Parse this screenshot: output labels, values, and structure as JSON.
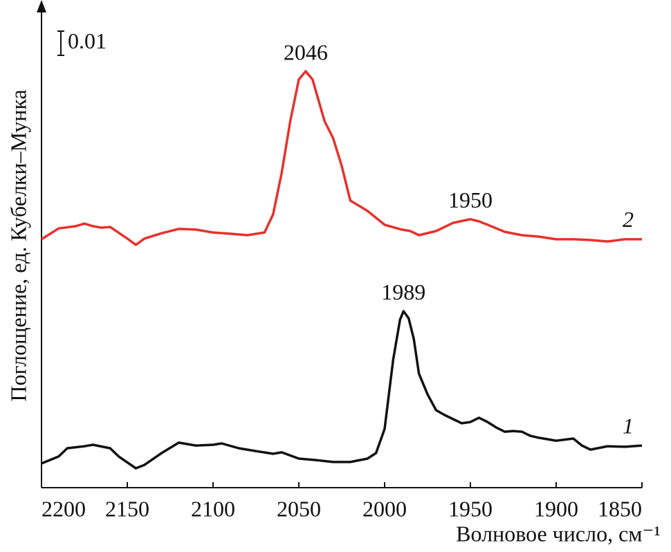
{
  "chart_data": {
    "type": "line",
    "xlabel": "Волновое число, см⁻¹",
    "ylabel": "Поглощение, ед. Кубелки–Мунка",
    "xlim": [
      2200,
      1850
    ],
    "xticks": [
      2200,
      2150,
      2100,
      2050,
      2000,
      1950,
      1900,
      1850
    ],
    "ylim": [
      0,
      0.2
    ],
    "scale_bar": 0.01,
    "series": [
      {
        "name": "1",
        "color": "#111111",
        "x": [
          2200,
          2190,
          2185,
          2175,
          2170,
          2160,
          2155,
          2145,
          2140,
          2130,
          2120,
          2110,
          2100,
          2095,
          2085,
          2075,
          2065,
          2060,
          2050,
          2040,
          2030,
          2020,
          2010,
          2005,
          2000,
          1995,
          1991,
          1989,
          1986,
          1983,
          1980,
          1975,
          1970,
          1965,
          1960,
          1955,
          1950,
          1945,
          1940,
          1935,
          1930,
          1925,
          1920,
          1915,
          1910,
          1900,
          1890,
          1885,
          1880,
          1870,
          1860,
          1850
        ],
        "values": [
          0.01,
          0.0129,
          0.0163,
          0.0171,
          0.0177,
          0.0163,
          0.0129,
          0.008,
          0.0094,
          0.0143,
          0.0186,
          0.0174,
          0.0177,
          0.0183,
          0.0163,
          0.0151,
          0.014,
          0.0146,
          0.012,
          0.0114,
          0.0106,
          0.0106,
          0.012,
          0.0143,
          0.0243,
          0.0529,
          0.0694,
          0.0729,
          0.07,
          0.0614,
          0.0471,
          0.0386,
          0.032,
          0.03,
          0.0283,
          0.0266,
          0.0271,
          0.0289,
          0.0271,
          0.0249,
          0.0231,
          0.0234,
          0.0231,
          0.0214,
          0.0206,
          0.0194,
          0.0203,
          0.0174,
          0.0157,
          0.0171,
          0.0169,
          0.0174
        ],
        "peaks": [
          1989
        ]
      },
      {
        "name": "2",
        "color": "#e8302c",
        "x": [
          2200,
          2190,
          2180,
          2175,
          2170,
          2165,
          2160,
          2150,
          2145,
          2140,
          2130,
          2120,
          2110,
          2100,
          2090,
          2080,
          2070,
          2065,
          2060,
          2055,
          2050,
          2046,
          2042,
          2035,
          2030,
          2025,
          2020,
          2010,
          2000,
          1990,
          1985,
          1980,
          1970,
          1960,
          1950,
          1945,
          1940,
          1930,
          1920,
          1910,
          1900,
          1890,
          1880,
          1870,
          1860,
          1850
        ],
        "values": [
          0.1026,
          0.1071,
          0.108,
          0.1091,
          0.108,
          0.1074,
          0.1077,
          0.1029,
          0.1003,
          0.1029,
          0.1051,
          0.1069,
          0.1066,
          0.1054,
          0.1049,
          0.1043,
          0.1054,
          0.1129,
          0.13,
          0.1514,
          0.1686,
          0.172,
          0.1686,
          0.1514,
          0.1443,
          0.1329,
          0.1186,
          0.1143,
          0.1086,
          0.1066,
          0.106,
          0.1043,
          0.106,
          0.1094,
          0.1109,
          0.11,
          0.1086,
          0.1057,
          0.1043,
          0.1037,
          0.1026,
          0.1026,
          0.1023,
          0.1017,
          0.1026,
          0.1026
        ],
        "peaks": [
          2046,
          1950
        ]
      }
    ]
  }
}
